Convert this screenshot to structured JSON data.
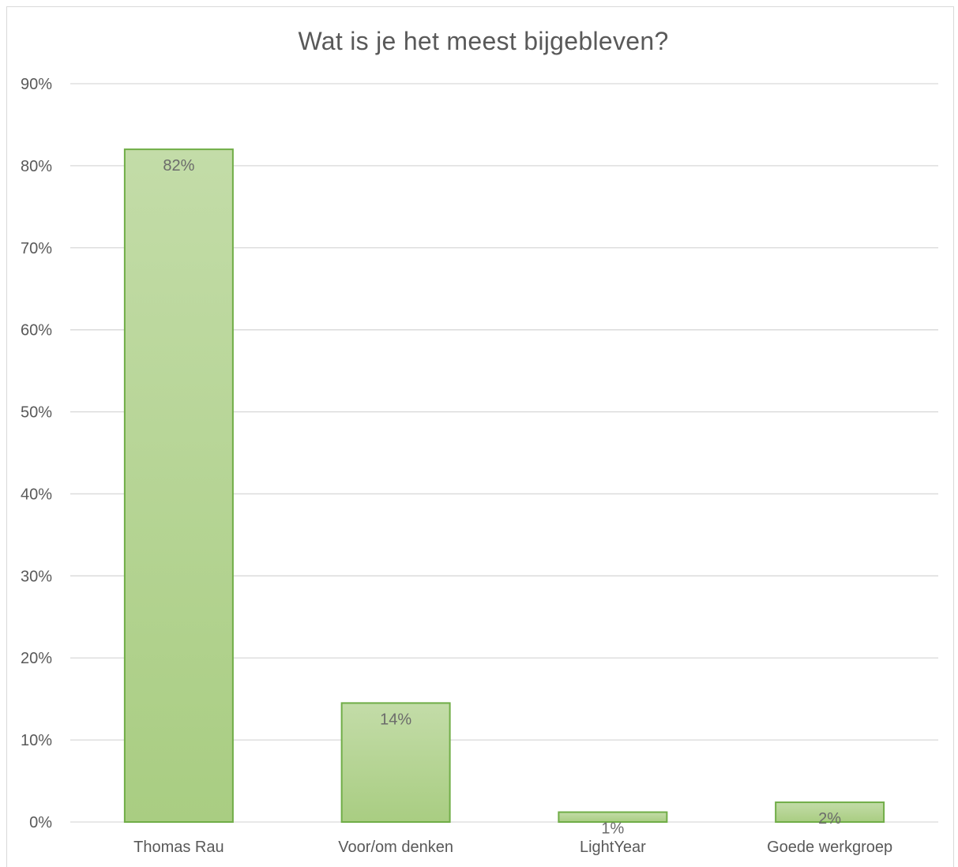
{
  "chart_data": {
    "type": "bar",
    "title": "Wat is je het meest bijgebleven?",
    "xlabel": "",
    "ylabel": "",
    "categories": [
      "Thomas Rau",
      "Voor/om denken",
      "LightYear",
      "Goede werkgroep"
    ],
    "values": [
      82,
      14.5,
      1.2,
      2.4
    ],
    "data_labels": [
      "82%",
      "14%",
      "1%",
      "2%"
    ],
    "ylim": [
      0,
      90
    ],
    "yticks": [
      0,
      10,
      20,
      30,
      40,
      50,
      60,
      70,
      80,
      90
    ],
    "ytick_labels": [
      "0%",
      "10%",
      "20%",
      "30%",
      "40%",
      "50%",
      "60%",
      "70%",
      "80%",
      "90%"
    ],
    "grid": true,
    "legend": "none",
    "colors": {
      "bar_top": "#c3dca8",
      "bar_bottom": "#a9cd82",
      "bar_border": "#70ad47",
      "grid": "#d9d9d9",
      "text": "#595959"
    }
  }
}
